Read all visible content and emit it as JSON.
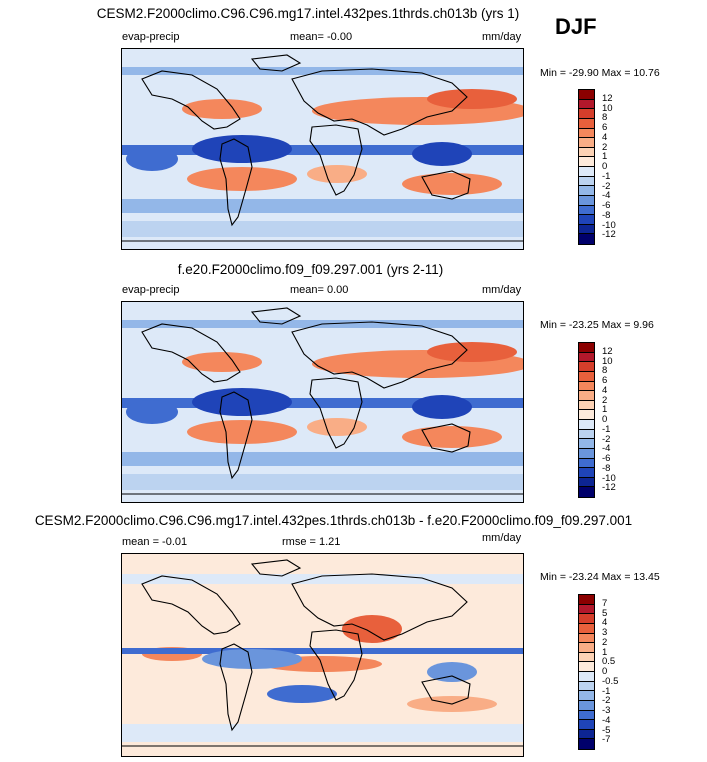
{
  "season": "DJF",
  "panels": [
    {
      "title": "CESM2.F2000climo.C96.C96.mg17.intel.432pes.1thrds.ch013b (yrs 1)",
      "left_label": "evap-precip",
      "center_label": "mean=  -0.00",
      "units": "mm/day",
      "minmax": "Min = -29.90 Max =  10.76",
      "colorbar_labels": [
        "12",
        "10",
        "8",
        "6",
        "4",
        "2",
        "1",
        "0",
        "-1",
        "-2",
        "-4",
        "-6",
        "-8",
        "-10",
        "-12"
      ],
      "colors": [
        "#8b0000",
        "#b2182b",
        "#d53e2b",
        "#e8603c",
        "#f4875c",
        "#f9ad86",
        "#fcd2b5",
        "#fdeadb",
        "#dde9f8",
        "#bcd3f0",
        "#93b7e8",
        "#6a95dc",
        "#3f6cd0",
        "#1f44b8",
        "#0d2593",
        "#00006b"
      ]
    },
    {
      "title": "f.e20.F2000climo.f09_f09.297.001 (yrs 2-11)",
      "left_label": "evap-precip",
      "center_label": "mean=  0.00",
      "units": "mm/day",
      "minmax": "Min = -23.25 Max =   9.96",
      "colorbar_labels": [
        "12",
        "10",
        "8",
        "6",
        "4",
        "2",
        "1",
        "0",
        "-1",
        "-2",
        "-4",
        "-6",
        "-8",
        "-10",
        "-12"
      ],
      "colors": [
        "#8b0000",
        "#b2182b",
        "#d53e2b",
        "#e8603c",
        "#f4875c",
        "#f9ad86",
        "#fcd2b5",
        "#fdeadb",
        "#dde9f8",
        "#bcd3f0",
        "#93b7e8",
        "#6a95dc",
        "#3f6cd0",
        "#1f44b8",
        "#0d2593",
        "#00006b"
      ]
    },
    {
      "title": "CESM2.F2000climo.C96.C96.mg17.intel.432pes.1thrds.ch013b - f.e20.F2000climo.f09_f09.297.001",
      "left_label": "mean =  -0.01",
      "center_label": "rmse =   1.21",
      "units": "mm/day",
      "minmax": "Min = -23.24 Max =  13.45",
      "colorbar_labels": [
        "7",
        "5",
        "4",
        "3",
        "2",
        "1",
        "0.5",
        "0",
        "-0.5",
        "-1",
        "-2",
        "-3",
        "-4",
        "-5",
        "-7"
      ],
      "colors": [
        "#8b0000",
        "#b2182b",
        "#d53e2b",
        "#e8603c",
        "#f4875c",
        "#f9ad86",
        "#fcd2b5",
        "#fdeadb",
        "#dde9f8",
        "#bcd3f0",
        "#93b7e8",
        "#6a95dc",
        "#3f6cd0",
        "#1f44b8",
        "#0d2593",
        "#00006b"
      ]
    }
  ],
  "chart_data": [
    {
      "type": "heatmap",
      "title": "CESM2.F2000climo.C96.C96.mg17.intel.432pes.1thrds.ch013b (yrs 1)",
      "variable": "evap-precip",
      "units": "mm/day",
      "mean": -0.0,
      "min": -29.9,
      "max": 10.76,
      "levels": [
        -12,
        -10,
        -8,
        -6,
        -4,
        -2,
        -1,
        0,
        1,
        2,
        4,
        6,
        8,
        10,
        12
      ]
    },
    {
      "type": "heatmap",
      "title": "f.e20.F2000climo.f09_f09.297.001 (yrs 2-11)",
      "variable": "evap-precip",
      "units": "mm/day",
      "mean": 0.0,
      "min": -23.25,
      "max": 9.96,
      "levels": [
        -12,
        -10,
        -8,
        -6,
        -4,
        -2,
        -1,
        0,
        1,
        2,
        4,
        6,
        8,
        10,
        12
      ]
    },
    {
      "type": "heatmap",
      "title": "CESM2.F2000climo.C96.C96.mg17.intel.432pes.1thrds.ch013b - f.e20.F2000climo.f09_f09.297.001",
      "units": "mm/day",
      "mean": -0.01,
      "rmse": 1.21,
      "min": -23.24,
      "max": 13.45,
      "levels": [
        -7,
        -5,
        -4,
        -3,
        -2,
        -1,
        -0.5,
        0,
        0.5,
        1,
        2,
        3,
        4,
        5,
        7
      ]
    }
  ]
}
